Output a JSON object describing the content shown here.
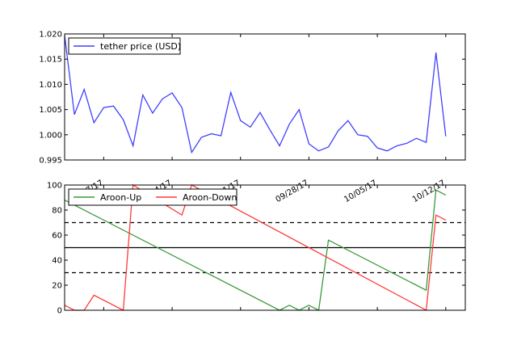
{
  "chart_data": [
    {
      "type": "line",
      "title": "",
      "xlabel": "",
      "ylabel": "",
      "x_range": [
        "2017-09-03",
        "2017-10-14"
      ],
      "ylim": [
        0.995,
        1.02
      ],
      "yticks": [
        "0.995",
        "1.000",
        "1.005",
        "1.010",
        "1.015",
        "1.020"
      ],
      "xticks": [
        {
          "date": "2017-09-07",
          "label": "09/07/17"
        },
        {
          "date": "2017-09-14",
          "label": "09/14/17"
        },
        {
          "date": "2017-09-21",
          "label": "09/21/17"
        },
        {
          "date": "2017-09-28",
          "label": "09/28/17"
        },
        {
          "date": "2017-10-05",
          "label": "10/05/17"
        },
        {
          "date": "2017-10-12",
          "label": "10/12/17"
        }
      ],
      "legend_position": "top-left",
      "grid": false,
      "series": [
        {
          "name": "tether price (USD)",
          "color": "#4040ff",
          "points": [
            {
              "x": "2017-09-03",
              "y": 1.0197
            },
            {
              "x": "2017-09-04",
              "y": 1.004
            },
            {
              "x": "2017-09-05",
              "y": 1.009
            },
            {
              "x": "2017-09-06",
              "y": 1.0024
            },
            {
              "x": "2017-09-07",
              "y": 1.0054
            },
            {
              "x": "2017-09-08",
              "y": 1.0057
            },
            {
              "x": "2017-09-09",
              "y": 1.003
            },
            {
              "x": "2017-09-10",
              "y": 0.9978
            },
            {
              "x": "2017-09-11",
              "y": 1.0079
            },
            {
              "x": "2017-09-12",
              "y": 1.0043
            },
            {
              "x": "2017-09-13",
              "y": 1.0071
            },
            {
              "x": "2017-09-14",
              "y": 1.0083
            },
            {
              "x": "2017-09-15",
              "y": 1.0054
            },
            {
              "x": "2017-09-16",
              "y": 0.9965
            },
            {
              "x": "2017-09-17",
              "y": 0.9995
            },
            {
              "x": "2017-09-18",
              "y": 1.0002
            },
            {
              "x": "2017-09-19",
              "y": 0.9998
            },
            {
              "x": "2017-09-20",
              "y": 1.0084
            },
            {
              "x": "2017-09-21",
              "y": 1.0028
            },
            {
              "x": "2017-09-22",
              "y": 1.0015
            },
            {
              "x": "2017-09-23",
              "y": 1.0044
            },
            {
              "x": "2017-09-24",
              "y": 1.001
            },
            {
              "x": "2017-09-25",
              "y": 0.9978
            },
            {
              "x": "2017-09-26",
              "y": 1.0021
            },
            {
              "x": "2017-09-27",
              "y": 1.005
            },
            {
              "x": "2017-09-28",
              "y": 0.9982
            },
            {
              "x": "2017-09-29",
              "y": 0.9968
            },
            {
              "x": "2017-09-30",
              "y": 0.9976
            },
            {
              "x": "2017-10-01",
              "y": 1.0008
            },
            {
              "x": "2017-10-02",
              "y": 1.0028
            },
            {
              "x": "2017-10-03",
              "y": 1.0
            },
            {
              "x": "2017-10-04",
              "y": 0.9997
            },
            {
              "x": "2017-10-05",
              "y": 0.9974
            },
            {
              "x": "2017-10-06",
              "y": 0.9968
            },
            {
              "x": "2017-10-07",
              "y": 0.9978
            },
            {
              "x": "2017-10-08",
              "y": 0.9983
            },
            {
              "x": "2017-10-09",
              "y": 0.9993
            },
            {
              "x": "2017-10-10",
              "y": 0.9985
            },
            {
              "x": "2017-10-11",
              "y": 1.0163
            },
            {
              "x": "2017-10-12",
              "y": 0.9997
            }
          ]
        }
      ]
    },
    {
      "type": "line",
      "title": "",
      "xlabel": "",
      "ylabel": "",
      "x_range": [
        "2017-09-03",
        "2017-10-14"
      ],
      "ylim": [
        0,
        100
      ],
      "yticks": [
        "0",
        "20",
        "40",
        "60",
        "80",
        "100"
      ],
      "legend_position": "top-left",
      "grid": false,
      "reference_lines": [
        {
          "y": 70,
          "style": "dashed"
        },
        {
          "y": 50,
          "style": "solid"
        },
        {
          "y": 30,
          "style": "dashed"
        }
      ],
      "series": [
        {
          "name": "Aroon-Up",
          "color": "#3a9a3a",
          "points": [
            {
              "x": "2017-09-03",
              "y": 88
            },
            {
              "x": "2017-09-25",
              "y": 0
            },
            {
              "x": "2017-09-26",
              "y": 4
            },
            {
              "x": "2017-09-27",
              "y": 0
            },
            {
              "x": "2017-09-28",
              "y": 4
            },
            {
              "x": "2017-09-29",
              "y": 0
            },
            {
              "x": "2017-09-30",
              "y": 56
            },
            {
              "x": "2017-10-10",
              "y": 16
            },
            {
              "x": "2017-10-11",
              "y": 96
            },
            {
              "x": "2017-10-12",
              "y": 92
            }
          ]
        },
        {
          "name": "Aroon-Down",
          "color": "#ff3a3a",
          "points": [
            {
              "x": "2017-09-03",
              "y": 4
            },
            {
              "x": "2017-09-04",
              "y": 0
            },
            {
              "x": "2017-09-05",
              "y": 0
            },
            {
              "x": "2017-09-06",
              "y": 12
            },
            {
              "x": "2017-09-09",
              "y": 0
            },
            {
              "x": "2017-09-10",
              "y": 100
            },
            {
              "x": "2017-09-15",
              "y": 76
            },
            {
              "x": "2017-09-16",
              "y": 100
            },
            {
              "x": "2017-10-10",
              "y": 0
            },
            {
              "x": "2017-10-11",
              "y": 76
            },
            {
              "x": "2017-10-12",
              "y": 72
            }
          ]
        }
      ]
    }
  ]
}
